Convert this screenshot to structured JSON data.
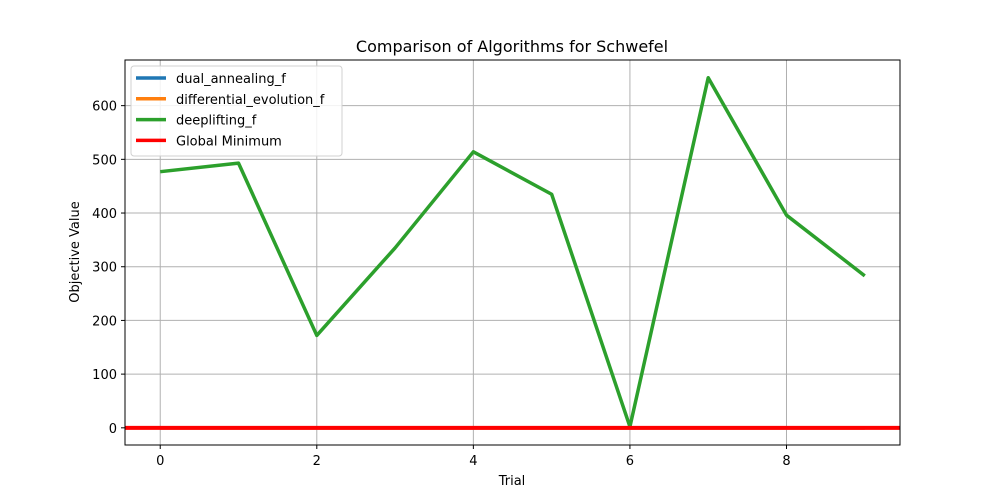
{
  "chart_data": {
    "type": "line",
    "title": "Comparison of Algorithms for Schwefel",
    "xlabel": "Trial",
    "ylabel": "Objective Value",
    "xlim": [
      -0.45,
      9.45
    ],
    "ylim": [
      -32,
      685
    ],
    "xticks": [
      0,
      2,
      4,
      6,
      8
    ],
    "yticks": [
      0,
      100,
      200,
      300,
      400,
      500,
      600
    ],
    "grid": true,
    "legend": "top-left",
    "x": [
      0,
      1,
      2,
      3,
      4,
      5,
      6,
      7,
      8,
      9
    ],
    "series": [
      {
        "name": "dual_annealing_f",
        "color": "#1f77b4",
        "values": [
          0,
          0,
          0,
          0,
          0,
          0,
          0,
          0,
          0,
          0
        ]
      },
      {
        "name": "differential_evolution_f",
        "color": "#ff7f0e",
        "values": [
          0,
          0,
          0,
          0,
          0,
          0,
          0,
          0,
          0,
          0
        ]
      },
      {
        "name": "deeplifting_f",
        "color": "#2ca02c",
        "values": [
          477,
          493,
          172,
          335,
          514,
          435,
          2,
          652,
          396,
          283
        ]
      }
    ],
    "reference_line": {
      "name": "Global Minimum",
      "color": "#ff0000",
      "y": 0
    }
  }
}
